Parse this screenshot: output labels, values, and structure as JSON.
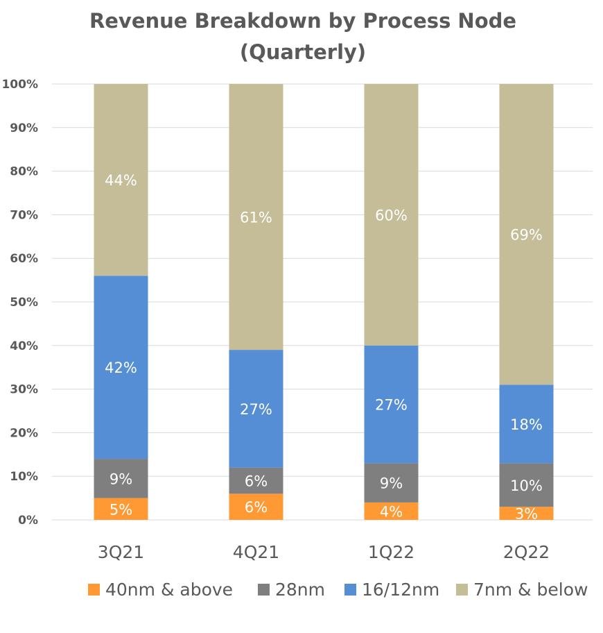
{
  "chart_data": {
    "type": "bar",
    "stacked": true,
    "title": "Revenue Breakdown by Process Node",
    "subtitle": "(Quarterly)",
    "categories": [
      "3Q21",
      "4Q21",
      "1Q22",
      "2Q22"
    ],
    "series": [
      {
        "name": "40nm & above",
        "color": "#FF9933",
        "values": [
          5,
          6,
          4,
          3
        ]
      },
      {
        "name": "28nm",
        "color": "#7F7F7F",
        "values": [
          9,
          6,
          9,
          10
        ]
      },
      {
        "name": "16/12nm",
        "color": "#558ED5",
        "values": [
          42,
          27,
          27,
          18
        ]
      },
      {
        "name": "7nm & below",
        "color": "#C4BD97",
        "values": [
          44,
          61,
          60,
          69
        ]
      }
    ],
    "yticks": [
      "0%",
      "10%",
      "20%",
      "30%",
      "40%",
      "50%",
      "60%",
      "70%",
      "80%",
      "90%",
      "100%"
    ],
    "ylim": [
      0,
      100
    ],
    "xlabel": "",
    "ylabel": "",
    "grid": true,
    "legend": "bottom"
  }
}
